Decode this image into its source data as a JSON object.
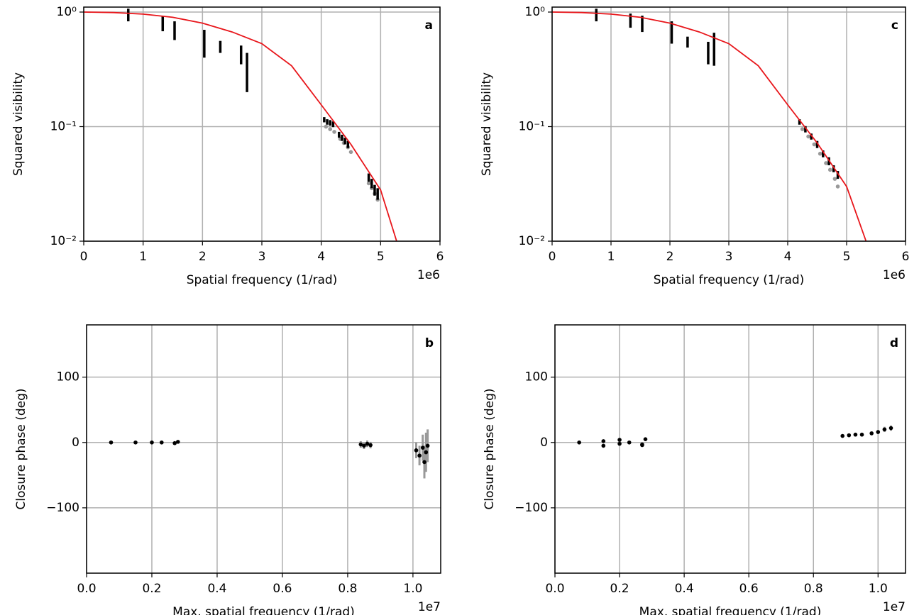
{
  "chart_data": [
    {
      "type": "scatter",
      "panel_label": "a",
      "x_label": "Spatial frequency (1/rad)",
      "x_offset_label": "1e6",
      "y_label": "Squared visibility",
      "y_scale": "log",
      "grid": true,
      "xlim": [
        0,
        6
      ],
      "ylim": [
        0.01,
        1.105
      ],
      "xticks": [
        0,
        1,
        2,
        3,
        4,
        5,
        6
      ],
      "yticks": [
        {
          "value": 0.01,
          "label": "10⁻²"
        },
        {
          "value": 0.1,
          "label": "10⁻¹"
        },
        {
          "value": 1,
          "label": "10⁰"
        }
      ],
      "series": [
        {
          "style": "points",
          "color": "#999999",
          "x": [
            4.08,
            4.15,
            4.22,
            4.32,
            4.38,
            4.45,
            4.5,
            4.8,
            4.85,
            4.9,
            4.95
          ],
          "values": [
            0.1,
            0.095,
            0.09,
            0.078,
            0.072,
            0.066,
            0.06,
            0.032,
            0.029,
            0.026,
            0.023
          ]
        },
        {
          "style": "errorbar",
          "color": "#000000",
          "x": [
            0.75,
            1.33,
            1.53,
            2.03,
            2.3,
            2.65,
            2.75,
            4.05,
            4.1,
            4.15,
            4.2,
            4.3,
            4.35,
            4.4,
            4.45,
            4.8,
            4.85,
            4.9,
            4.95
          ],
          "values": [
            0.95,
            0.8,
            0.7,
            0.55,
            0.5,
            0.43,
            0.32,
            0.115,
            0.11,
            0.108,
            0.105,
            0.085,
            0.08,
            0.075,
            0.07,
            0.036,
            0.032,
            0.028,
            0.026
          ],
          "errors": [
            0.12,
            0.12,
            0.13,
            0.15,
            0.06,
            0.08,
            0.12,
            0.006,
            0.006,
            0.006,
            0.006,
            0.005,
            0.005,
            0.005,
            0.005,
            0.003,
            0.003,
            0.003,
            0.003
          ]
        },
        {
          "style": "line",
          "color": "#e8161b",
          "x": [
            0,
            0.5,
            1,
            1.5,
            2,
            2.5,
            3,
            3.5,
            4,
            4.5,
            5,
            5.27
          ],
          "values": [
            1.0,
            0.99,
            0.96,
            0.9,
            0.8,
            0.67,
            0.53,
            0.34,
            0.155,
            0.07,
            0.028,
            0.01
          ]
        }
      ]
    },
    {
      "type": "scatter",
      "panel_label": "b",
      "x_label": "Max. spatial frequency (1/rad)",
      "x_offset_label": "1e7",
      "y_label": "Closure phase (deg)",
      "y_scale": "linear",
      "grid": true,
      "xlim": [
        0,
        1.085
      ],
      "ylim": [
        -200,
        180
      ],
      "xticks": [
        {
          "value": 0,
          "label": "0.0"
        },
        {
          "value": 0.2,
          "label": "0.2"
        },
        {
          "value": 0.4,
          "label": "0.4"
        },
        {
          "value": 0.6,
          "label": "0.6"
        },
        {
          "value": 0.8,
          "label": "0.8"
        },
        {
          "value": 1,
          "label": "1.0"
        }
      ],
      "yticks": [
        {
          "value": -100,
          "label": "−100"
        },
        0,
        100
      ],
      "series": [
        {
          "style": "errorpoints",
          "color": "#000000",
          "x": [
            0.075,
            0.15,
            0.2,
            0.23,
            0.27,
            0.28,
            0.84,
            0.85,
            0.86,
            0.87,
            1.01,
            1.02,
            1.03,
            1.035,
            1.04,
            1.045
          ],
          "values": [
            0,
            0,
            0,
            0,
            -1,
            1,
            -3,
            -5,
            -2,
            -4,
            -12,
            -20,
            -8,
            -30,
            -15,
            -5
          ],
          "errors": [
            1,
            1,
            1,
            1,
            2,
            2,
            5,
            5,
            5,
            5,
            12,
            15,
            20,
            25,
            30,
            25
          ]
        }
      ]
    },
    {
      "type": "scatter",
      "panel_label": "c",
      "x_label": "Spatial frequency (1/rad)",
      "x_offset_label": "1e6",
      "y_label": "Squared visibility",
      "y_scale": "log",
      "grid": true,
      "xlim": [
        0,
        6
      ],
      "ylim": [
        0.01,
        1.105
      ],
      "xticks": [
        0,
        1,
        2,
        3,
        4,
        5,
        6
      ],
      "yticks": [
        {
          "value": 0.01,
          "label": "10⁻²"
        },
        {
          "value": 0.1,
          "label": "10⁻¹"
        },
        {
          "value": 1,
          "label": "10⁰"
        }
      ],
      "series": [
        {
          "style": "points",
          "color": "#999999",
          "x": [
            4.25,
            4.35,
            4.45,
            4.55,
            4.65,
            4.72,
            4.8,
            4.85
          ],
          "values": [
            0.095,
            0.082,
            0.07,
            0.058,
            0.048,
            0.042,
            0.035,
            0.03
          ]
        },
        {
          "style": "errorbar",
          "color": "#000000",
          "x": [
            0.75,
            1.33,
            1.53,
            2.03,
            2.3,
            2.65,
            2.75,
            4.2,
            4.3,
            4.4,
            4.5,
            4.6,
            4.7,
            4.78,
            4.85
          ],
          "values": [
            0.95,
            0.85,
            0.8,
            0.68,
            0.55,
            0.45,
            0.5,
            0.11,
            0.095,
            0.082,
            0.07,
            0.058,
            0.05,
            0.043,
            0.038
          ],
          "errors": [
            0.12,
            0.12,
            0.13,
            0.15,
            0.06,
            0.1,
            0.16,
            0.006,
            0.006,
            0.005,
            0.005,
            0.004,
            0.004,
            0.003,
            0.003
          ]
        },
        {
          "style": "line",
          "color": "#e8161b",
          "x": [
            0,
            0.5,
            1,
            1.5,
            2,
            2.5,
            3,
            3.5,
            4,
            4.5,
            5,
            5.33
          ],
          "values": [
            1.0,
            0.99,
            0.96,
            0.9,
            0.8,
            0.67,
            0.53,
            0.34,
            0.155,
            0.072,
            0.03,
            0.01
          ]
        }
      ]
    },
    {
      "type": "scatter",
      "panel_label": "d",
      "x_label": "Max. spatial frequency (1/rad)",
      "x_offset_label": "1e7",
      "y_label": "Closure phase (deg)",
      "y_scale": "linear",
      "grid": true,
      "xlim": [
        0,
        1.085
      ],
      "ylim": [
        -200,
        180
      ],
      "xticks": [
        {
          "value": 0,
          "label": "0.0"
        },
        {
          "value": 0.2,
          "label": "0.2"
        },
        {
          "value": 0.4,
          "label": "0.4"
        },
        {
          "value": 0.6,
          "label": "0.6"
        },
        {
          "value": 0.8,
          "label": "0.8"
        },
        {
          "value": 1,
          "label": "1.0"
        }
      ],
      "yticks": [
        {
          "value": -100,
          "label": "−100"
        },
        0,
        100
      ],
      "series": [
        {
          "style": "errorpoints",
          "color": "#000000",
          "x": [
            0.075,
            0.15,
            0.15,
            0.2,
            0.2,
            0.23,
            0.27,
            0.27,
            0.28,
            0.89,
            0.91,
            0.93,
            0.95,
            0.98,
            1.0,
            1.02,
            1.04
          ],
          "values": [
            0,
            -5,
            2,
            4,
            -2,
            0,
            -4,
            -3,
            5,
            10,
            11,
            12,
            12,
            14,
            16,
            20,
            22
          ],
          "errors": [
            1,
            2,
            2,
            2,
            2,
            1,
            2,
            2,
            2,
            2,
            2,
            2,
            2,
            3,
            3,
            4,
            4
          ]
        }
      ]
    }
  ]
}
